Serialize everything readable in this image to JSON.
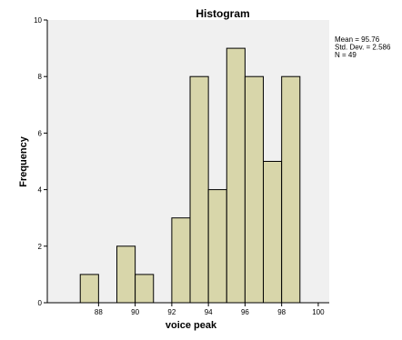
{
  "chart_data": {
    "type": "bar",
    "title": "Histogram",
    "xlabel": "voice peak",
    "ylabel": "Frequency",
    "bins": [
      {
        "start": 87,
        "end": 88,
        "count": 1
      },
      {
        "start": 88,
        "end": 89,
        "count": 0
      },
      {
        "start": 89,
        "end": 90,
        "count": 2
      },
      {
        "start": 90,
        "end": 91,
        "count": 1
      },
      {
        "start": 91,
        "end": 92,
        "count": 0
      },
      {
        "start": 92,
        "end": 93,
        "count": 3
      },
      {
        "start": 93,
        "end": 94,
        "count": 8
      },
      {
        "start": 94,
        "end": 95,
        "count": 4
      },
      {
        "start": 95,
        "end": 96,
        "count": 9
      },
      {
        "start": 96,
        "end": 97,
        "count": 8
      },
      {
        "start": 97,
        "end": 98,
        "count": 5
      },
      {
        "start": 98,
        "end": 99,
        "count": 8
      }
    ],
    "xlim": [
      85.2,
      100.6
    ],
    "ylim": [
      0,
      10
    ],
    "x_ticks": [
      88,
      90,
      92,
      94,
      96,
      98,
      100
    ],
    "y_ticks": [
      0,
      2,
      4,
      6,
      8,
      10
    ],
    "stats": [
      "Mean = 95.76",
      "Std. Dev. = 2.586",
      "N = 49"
    ],
    "colors": {
      "plot_background": "#f0f0f0",
      "bar_fill": "#d8d6aa",
      "bar_stroke": "#000000"
    }
  }
}
